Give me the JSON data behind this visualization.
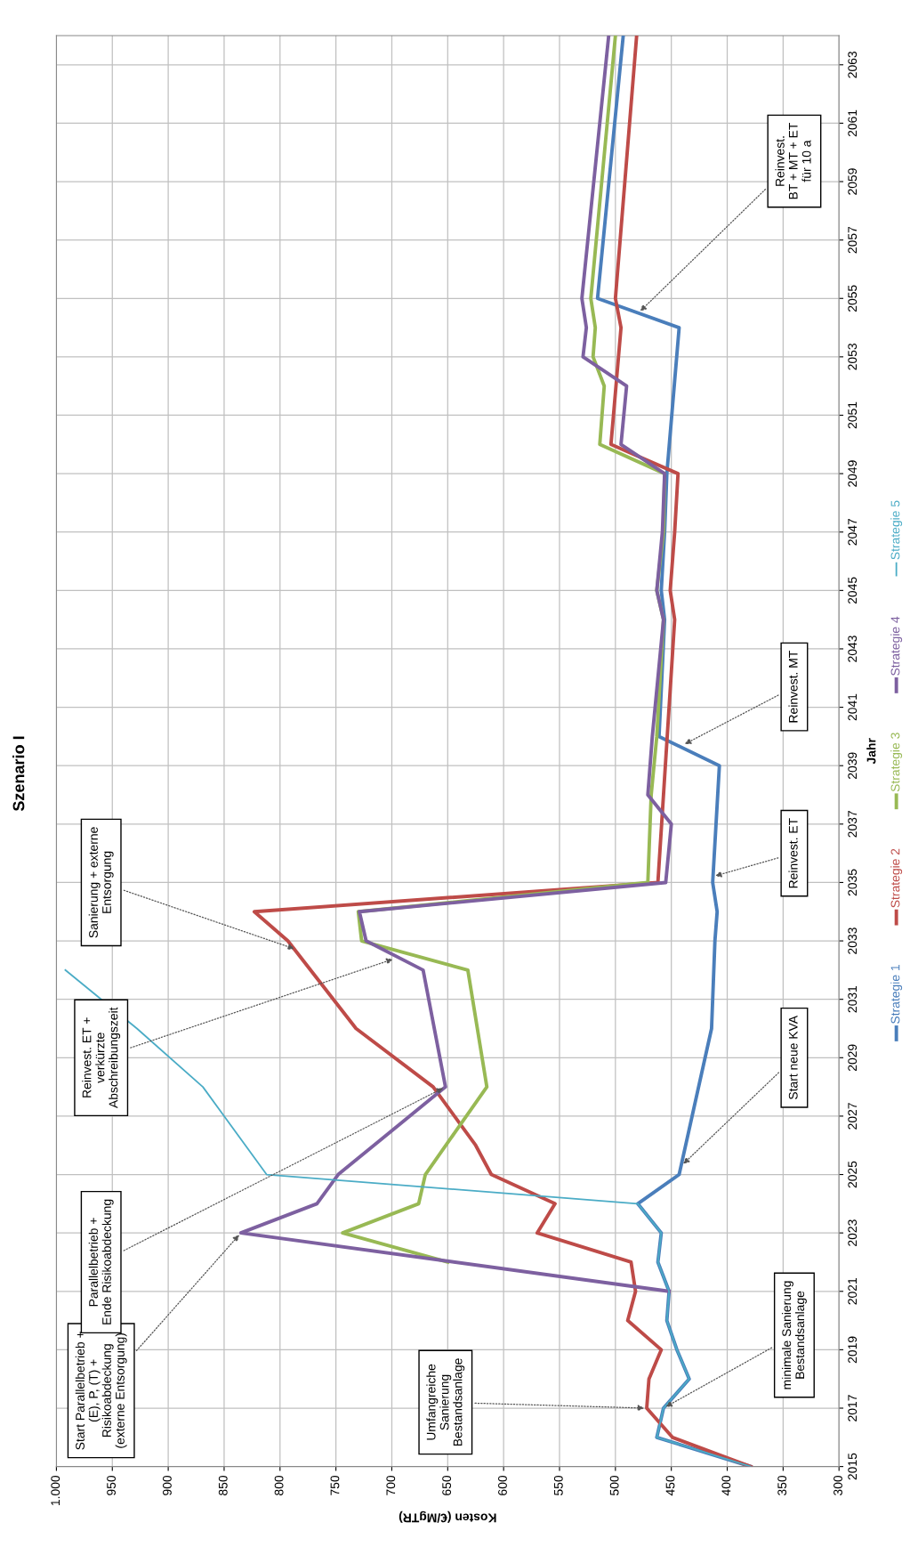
{
  "chart_data": {
    "type": "line",
    "title": "Szenario I",
    "xlabel": "Kosten (€/MgTR)",
    "ylabel": "Jahr",
    "ylim": [
      2015,
      2064
    ],
    "yticks": [
      2015,
      2017,
      2019,
      2021,
      2023,
      2025,
      2027,
      2029,
      2031,
      2033,
      2035,
      2037,
      2039,
      2041,
      2043,
      2045,
      2047,
      2049,
      2051,
      2053,
      2055,
      2057,
      2059,
      2061,
      2063
    ],
    "xlim": [
      1000,
      300
    ],
    "xticks": [
      300,
      350,
      400,
      450,
      500,
      550,
      600,
      650,
      700,
      750,
      800,
      850,
      900,
      950,
      {
        "value": 1000,
        "label": "1.000"
      }
    ],
    "grid": true,
    "legend": "right",
    "marker": "none",
    "line_style": "solid",
    "series": [
      {
        "name": "Strategie 1",
        "color": "#4a7ebb",
        "values": [
          2015,
          2016,
          2017,
          2018,
          2019,
          2020,
          2021,
          2022,
          2023,
          2024,
          2025,
          2030,
          2033,
          2034,
          2035,
          2039,
          2040,
          2044,
          2045,
          2047,
          2049,
          2054,
          2055,
          2064
        ],
        "x": [
          379,
          463,
          457,
          434,
          445,
          454,
          452,
          462,
          459,
          480,
          443,
          414,
          411,
          409,
          413,
          407,
          461,
          456,
          459,
          456,
          454,
          443,
          516,
          493
        ]
      },
      {
        "name": "Strategie 2",
        "color": "#be4b48",
        "values": [
          2015,
          2016,
          2017,
          2018,
          2019,
          2020,
          2021,
          2022,
          2023,
          2024,
          2025,
          2026,
          2028,
          2030,
          2033,
          2034,
          2035,
          2044,
          2045,
          2047,
          2049,
          2050,
          2054,
          2055,
          2064
        ],
        "x": [
          379,
          449,
          472,
          470,
          459,
          489,
          482,
          486,
          570,
          554,
          611,
          625,
          663,
          732,
          793,
          823,
          462,
          447,
          451,
          447,
          444,
          504,
          495,
          500,
          481
        ]
      },
      {
        "name": "Strategie 3",
        "color": "#98b954",
        "values": [
          2022,
          2023,
          2024,
          2025,
          2028,
          2032,
          2033,
          2034,
          2035,
          2038,
          2040,
          2044,
          2045,
          2047,
          2049,
          2050,
          2052,
          2053,
          2054,
          2055,
          2064
        ],
        "x": [
          650,
          744,
          676,
          670,
          615,
          632,
          727,
          730,
          471,
          468,
          463,
          457,
          463,
          457,
          456,
          514,
          510,
          520,
          518,
          522,
          500
        ]
      },
      {
        "name": "Strategie 4",
        "color": "#7d60a0",
        "values": [
          2021,
          2023,
          2024,
          2025,
          2028,
          2032,
          2033,
          2034,
          2035,
          2037,
          2038,
          2040,
          2044,
          2045,
          2047,
          2049,
          2050,
          2052,
          2053,
          2054,
          2055,
          2064
        ],
        "x": [
          452,
          835,
          767,
          748,
          652,
          672,
          723,
          729,
          455,
          450,
          471,
          467,
          457,
          463,
          458,
          456,
          495,
          490,
          529,
          526,
          530,
          506
        ]
      },
      {
        "name": "Strategie 5",
        "color": "#4bacc6",
        "values": [
          2015,
          2016,
          2017,
          2018,
          2019,
          2020,
          2021,
          2022,
          2023,
          2024,
          2025,
          2028,
          2030,
          2032
        ],
        "x": [
          379,
          463,
          457,
          434,
          445,
          454,
          452,
          462,
          459,
          480,
          812,
          869,
          928,
          992
        ]
      }
    ],
    "annotations": [
      {
        "text": "Start Parallelbetrieb +\n(E), P, (T) +\nRisikoabdeckung\n(externe Entsorgung)",
        "x": 835,
        "y": 2023
      },
      {
        "text": "Parallelbetrieb +\nEnde Risikoabdeckung",
        "x": 652,
        "y": 2028
      },
      {
        "text": "Reinvest. ET +\nverkürzte\nAbschreibungszeit",
        "x": 697,
        "y": 2032.4
      },
      {
        "text": "Sanierung + externe\nEntsorgung",
        "x": 785,
        "y": 2032.7
      },
      {
        "text": "Umfangreiche\nSanierung\nBestandsanlage",
        "x": 472,
        "y": 2017
      },
      {
        "text": "minimale Sanierung\nBestandsanlage",
        "x": 457,
        "y": 2017
      },
      {
        "text": "Start neue KVA",
        "x": 441,
        "y": 2025.3
      },
      {
        "text": "Reinvest. ET",
        "x": 413,
        "y": 2035.2
      },
      {
        "text": "Reinvest. MT",
        "x": 440,
        "y": 2039.7
      },
      {
        "text": "Reinvest.\nBT + MT + ET\nfür 10 a",
        "x": 479.5,
        "y": 2054.5
      }
    ]
  }
}
